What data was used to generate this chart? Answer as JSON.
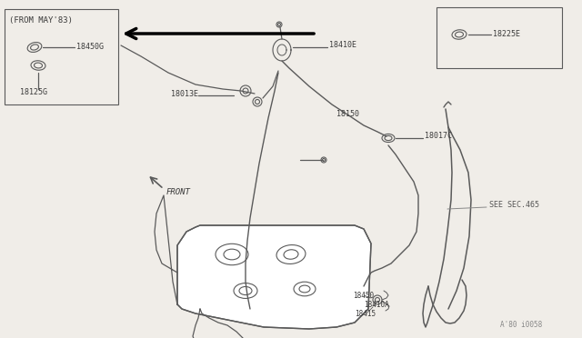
{
  "bg_color": "#f0ede8",
  "line_color": "#5a5a5a",
  "text_color": "#3a3a3a",
  "fig_watermark": "A'80 i0058",
  "box1_label": "(FROM MAY'83)",
  "figsize": [
    6.4,
    3.72
  ],
  "dpi": 100,
  "xlim": [
    0,
    640
  ],
  "ylim": [
    0,
    372
  ]
}
